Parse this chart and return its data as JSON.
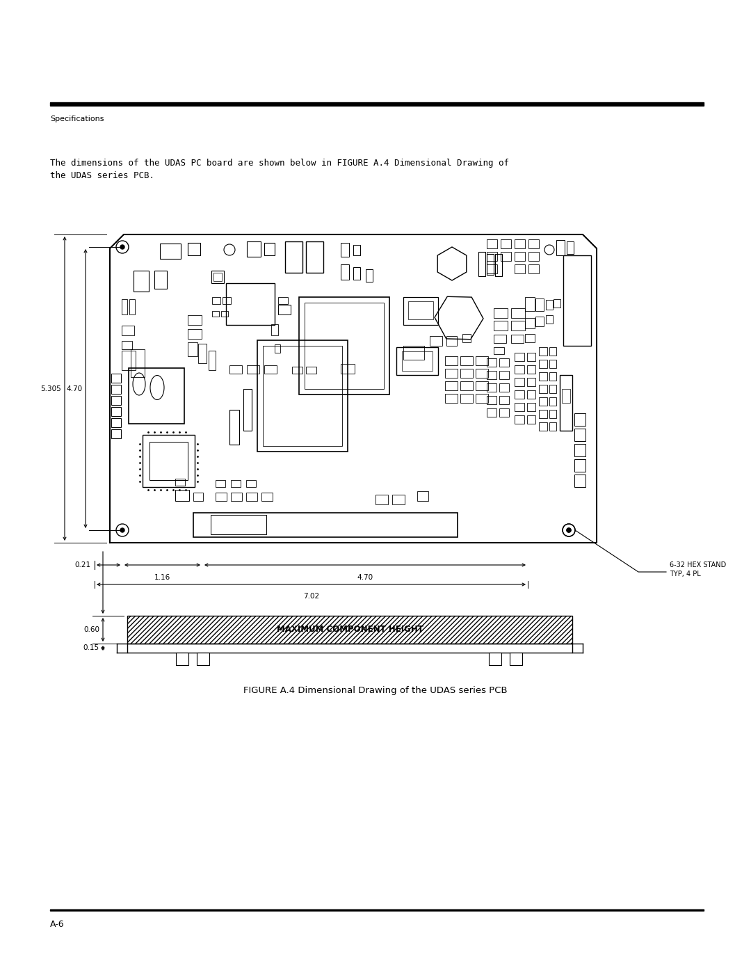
{
  "page_title": "Specifications",
  "page_number": "A-6",
  "intro_text_part1": "The dimensions of the UDAS PC board are shown below in FIGURE A.4 Dimensional Drawing of",
  "intro_text_part2": "the UDAS series PCB.",
  "figure_caption": "FIGURE A.4 Dimensional Drawing of the UDAS series PCB",
  "dim_5305": "5.305",
  "dim_4_70_vert": "4.70",
  "dim_0_21": "0.21",
  "dim_1_16": "1.16",
  "dim_4_70_horiz": "4.70",
  "dim_7_02": "7.02",
  "dim_0_60": "0.60",
  "dim_0_15": "0.15",
  "standoff_label1": "6-32 HEX STAND",
  "standoff_label2": "TYP, 4 PL",
  "max_component_label": "MAXIMUM COMPONENT HEIGHT",
  "bg_color": "#ffffff",
  "line_color": "#000000"
}
